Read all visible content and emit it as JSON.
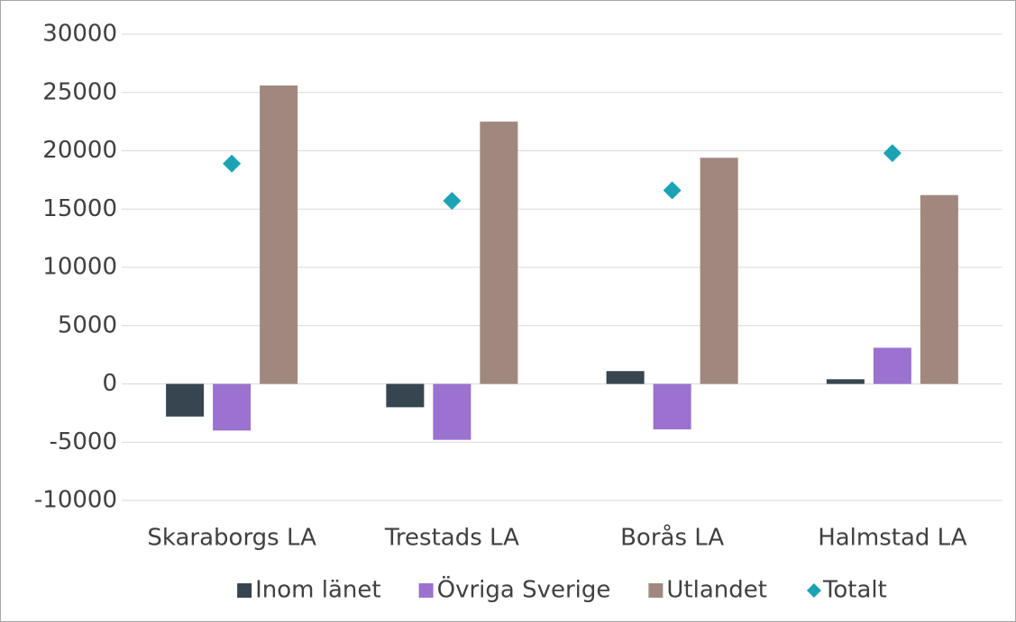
{
  "chart_data": {
    "type": "bar",
    "categories": [
      "Skaraborgs LA",
      "Trestads LA",
      "Borås LA",
      "Halmstad LA"
    ],
    "series": [
      {
        "name": "Inom länet",
        "color": "#36454f",
        "type": "bar",
        "values": [
          -2800,
          -2000,
          1100,
          400
        ]
      },
      {
        "name": "Övriga Sverige",
        "color": "#9b72cf",
        "type": "bar",
        "values": [
          -4000,
          -4800,
          -3900,
          3100
        ]
      },
      {
        "name": "Utlandet",
        "color": "#a0887e",
        "type": "bar",
        "values": [
          25600,
          22500,
          19400,
          16200
        ]
      },
      {
        "name": "Totalt",
        "color": "#1ba3b3",
        "type": "scatter",
        "values": [
          18900,
          15700,
          16600,
          19800
        ]
      }
    ],
    "ylim": [
      -10000,
      30000
    ],
    "yticks": [
      -10000,
      -5000,
      0,
      5000,
      10000,
      15000,
      20000,
      25000,
      30000
    ],
    "grid": true,
    "legend": "bottom"
  }
}
